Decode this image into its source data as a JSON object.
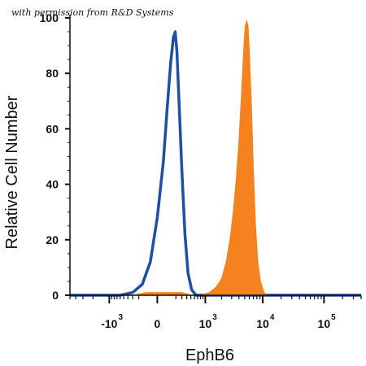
{
  "permission_note": "with permission from R&D Systems",
  "chart_data": {
    "type": "area",
    "xlabel": "EphB6",
    "ylabel": "Relative Cell Number",
    "x_scale": "biexponential",
    "xlim": [
      -5000,
      400000
    ],
    "ylim": [
      0,
      100
    ],
    "y_ticks": [
      0,
      20,
      40,
      60,
      80,
      100
    ],
    "x_ticks": [
      {
        "value": -1000,
        "base": "-10",
        "exp": "3"
      },
      {
        "value": 0,
        "base": "0",
        "exp": ""
      },
      {
        "value": 1000,
        "base": "10",
        "exp": "3"
      },
      {
        "value": 10000,
        "base": "10",
        "exp": "4"
      },
      {
        "value": 100000,
        "base": "10",
        "exp": "5"
      }
    ],
    "grid": false,
    "colors": {
      "isotype": "#1f4fa3",
      "stained": "#f5821f",
      "axis": "#111111"
    },
    "series": [
      {
        "style": "outline",
        "color": "#1f4fa3",
        "points": [
          [
            -5000,
            0
          ],
          [
            -1200,
            0
          ],
          [
            -600,
            0
          ],
          [
            -300,
            1
          ],
          [
            -150,
            4
          ],
          [
            -60,
            12
          ],
          [
            0,
            28
          ],
          [
            50,
            48
          ],
          [
            90,
            68
          ],
          [
            130,
            84
          ],
          [
            165,
            93
          ],
          [
            190,
            95
          ],
          [
            215,
            88
          ],
          [
            250,
            70
          ],
          [
            300,
            45
          ],
          [
            360,
            22
          ],
          [
            430,
            8
          ],
          [
            520,
            2
          ],
          [
            650,
            0
          ],
          [
            1000,
            0
          ],
          [
            400000,
            0
          ]
        ]
      },
      {
        "style": "filled",
        "color": "#f5821f",
        "points": [
          [
            -5000,
            0
          ],
          [
            -300,
            0
          ],
          [
            -100,
            1
          ],
          [
            100,
            1
          ],
          [
            300,
            1
          ],
          [
            500,
            0
          ],
          [
            800,
            0
          ],
          [
            1200,
            1
          ],
          [
            1600,
            3
          ],
          [
            2000,
            6
          ],
          [
            2400,
            12
          ],
          [
            2800,
            20
          ],
          [
            3200,
            30
          ],
          [
            3600,
            42
          ],
          [
            4000,
            56
          ],
          [
            4400,
            72
          ],
          [
            4800,
            88
          ],
          [
            5100,
            97
          ],
          [
            5400,
            99
          ],
          [
            5700,
            97
          ],
          [
            6000,
            88
          ],
          [
            6500,
            68
          ],
          [
            7000,
            46
          ],
          [
            7600,
            25
          ],
          [
            8300,
            12
          ],
          [
            9200,
            5
          ],
          [
            10500,
            1
          ],
          [
            12000,
            0
          ],
          [
            400000,
            0
          ]
        ]
      }
    ]
  }
}
